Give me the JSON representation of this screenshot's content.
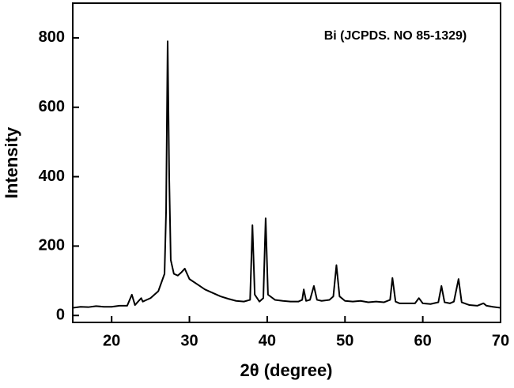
{
  "chart_data": {
    "type": "line",
    "annotation": "Bi (JCPDS. NO 85-1329)",
    "xlabel": "2θ  (degree)",
    "ylabel": "Intensity",
    "x": [
      15,
      16,
      17,
      18,
      19,
      20,
      21,
      22,
      22.6,
      23,
      23.8,
      24,
      25,
      26,
      26.8,
      27.0,
      27.2,
      27.4,
      27.6,
      28,
      28.5,
      29,
      29.4,
      30,
      31,
      32,
      33,
      34,
      35,
      36,
      37,
      37.8,
      38.1,
      38.4,
      39,
      39.5,
      39.8,
      40.1,
      41,
      42,
      43,
      44,
      44.5,
      44.7,
      45,
      45.5,
      46,
      46.4,
      47,
      48,
      48.5,
      48.9,
      49.3,
      50,
      51,
      52,
      53,
      54,
      55,
      55.8,
      56.1,
      56.5,
      57,
      58,
      59,
      59.5,
      60,
      61,
      62,
      62.4,
      62.8,
      63.5,
      64,
      64.6,
      65,
      66,
      67,
      67.8,
      68.2,
      69,
      70
    ],
    "values": [
      22,
      25,
      24,
      27,
      25,
      25,
      28,
      28,
      60,
      30,
      50,
      40,
      50,
      70,
      120,
      300,
      790,
      400,
      160,
      120,
      115,
      125,
      135,
      105,
      90,
      75,
      65,
      55,
      48,
      42,
      40,
      45,
      260,
      60,
      40,
      50,
      280,
      60,
      45,
      42,
      40,
      40,
      45,
      75,
      42,
      45,
      85,
      45,
      42,
      45,
      55,
      145,
      55,
      42,
      40,
      42,
      38,
      40,
      38,
      45,
      108,
      40,
      35,
      35,
      35,
      50,
      35,
      33,
      38,
      85,
      38,
      35,
      40,
      105,
      38,
      30,
      28,
      35,
      28,
      25,
      22
    ],
    "color": "#000000",
    "xlim": [
      15,
      70
    ],
    "ylim": [
      -20,
      900
    ],
    "xticks": [
      20,
      30,
      40,
      50,
      60,
      70
    ],
    "yticks": [
      0,
      200,
      400,
      600,
      800
    ],
    "grid": false
  }
}
